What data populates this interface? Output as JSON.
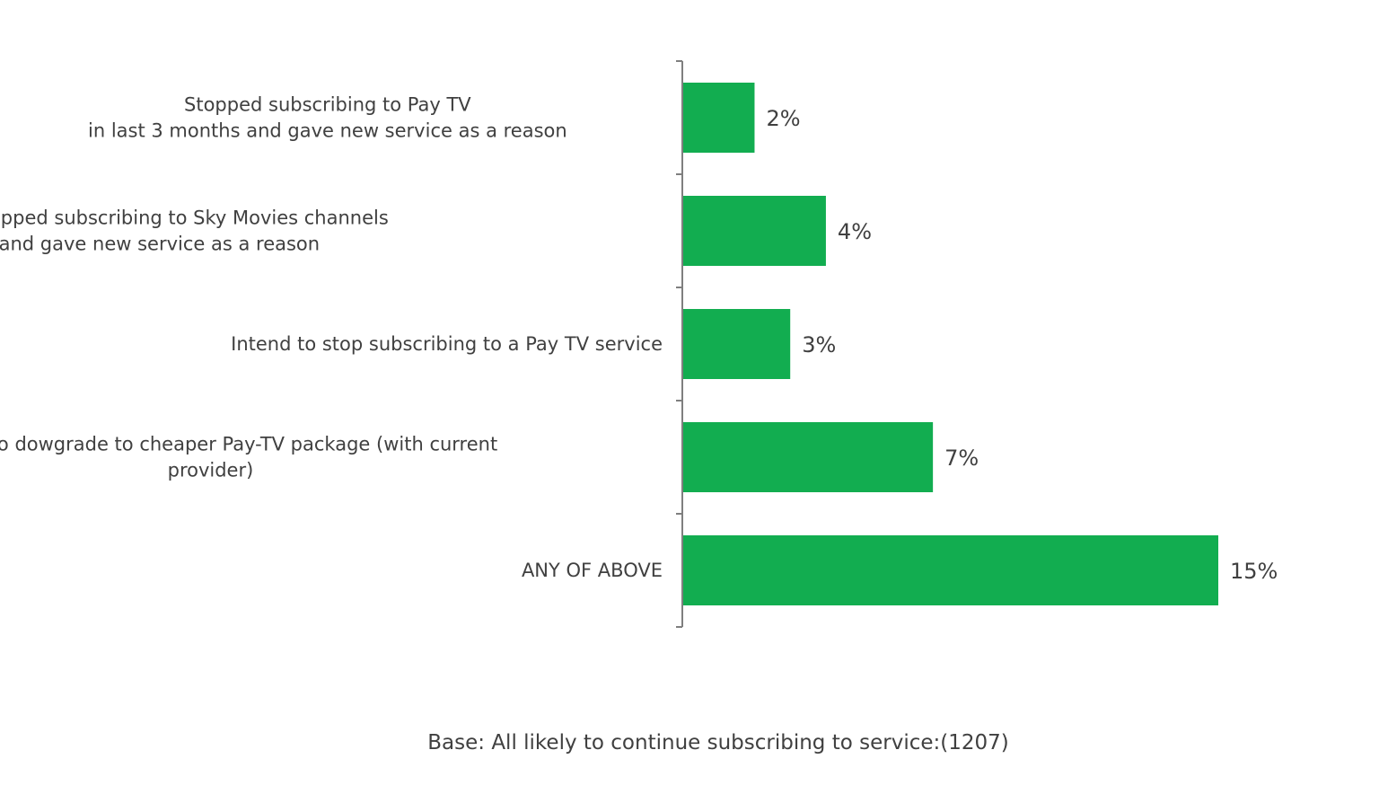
{
  "chart_data": {
    "type": "bar",
    "orientation": "horizontal",
    "categories": [
      [
        "Stopped subscribing to Pay TV",
        "in last 3 months and gave new service as a reason"
      ],
      [
        "Still have Pay TV but stopped subscribing to Sky Movies channels",
        "in last 3 months and gave new service as a reason"
      ],
      [
        "Intend to stop subscribing to a Pay TV service"
      ],
      [
        "Intend to dowgrade to cheaper Pay-TV package (with current",
        "provider)"
      ],
      [
        "ANY OF ABOVE"
      ]
    ],
    "values": [
      2,
      4,
      3,
      7,
      15
    ],
    "value_labels": [
      "2%",
      "4%",
      "3%",
      "7%",
      "15%"
    ],
    "unit": "%",
    "xlim": [
      0,
      15
    ],
    "grid": false,
    "legend": "none",
    "bar_color": "#12ad50",
    "footnote": "Base: All likely to continue subscribing to service:(1207)"
  }
}
